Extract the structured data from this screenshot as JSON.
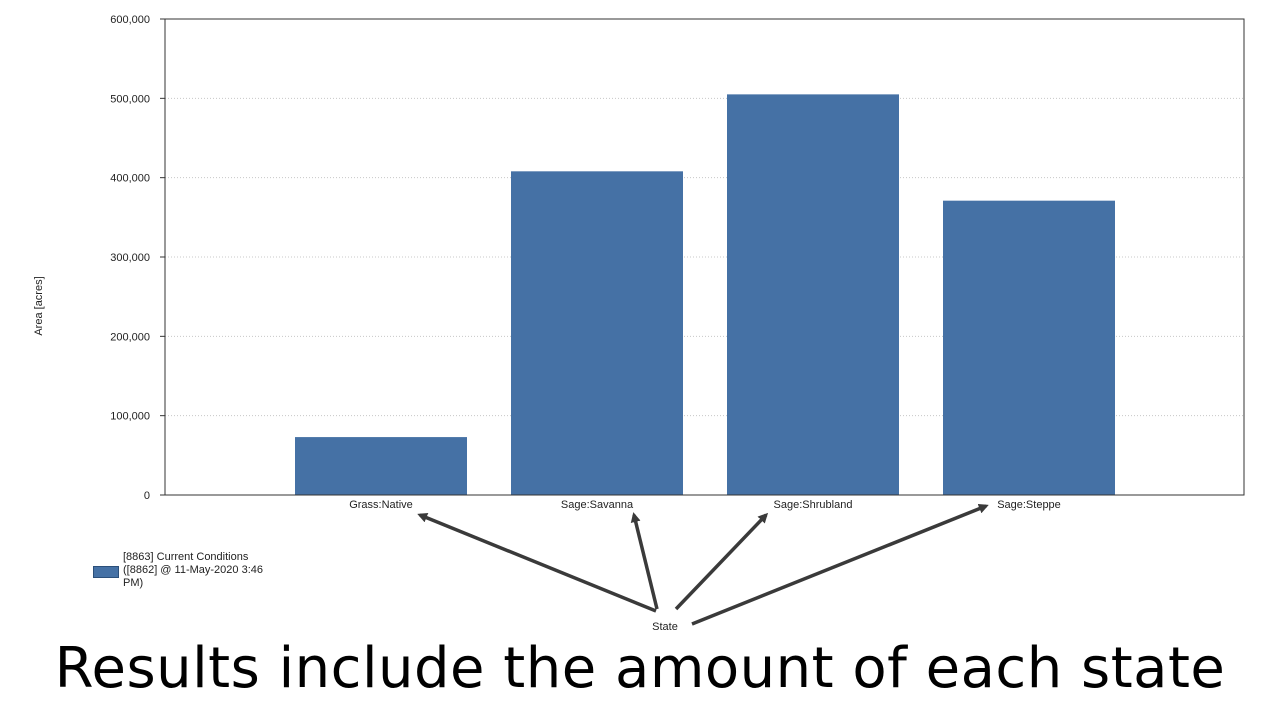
{
  "chart_data": {
    "type": "bar",
    "categories": [
      "Grass:Native",
      "Sage:Savanna",
      "Sage:Shrubland",
      "Sage:Steppe"
    ],
    "series": [
      {
        "name": "[8863] Current Conditions ([8862] @ 11-May-2020 3:46 PM)",
        "values": [
          73000,
          408000,
          505000,
          371000
        ],
        "color": "#4571a5"
      }
    ],
    "ylabel": "Area [acres]",
    "xlabel": "State",
    "ylim": [
      0,
      600000
    ],
    "yticks": [
      0,
      100000,
      200000,
      300000,
      400000,
      500000,
      600000
    ],
    "ytick_labels": [
      "0",
      "100,000",
      "200,000",
      "300,000",
      "400,000",
      "500,000",
      "600,000"
    ],
    "grid": true,
    "legend_position": "bottom-left"
  },
  "caption": "Results include the amount of each state"
}
